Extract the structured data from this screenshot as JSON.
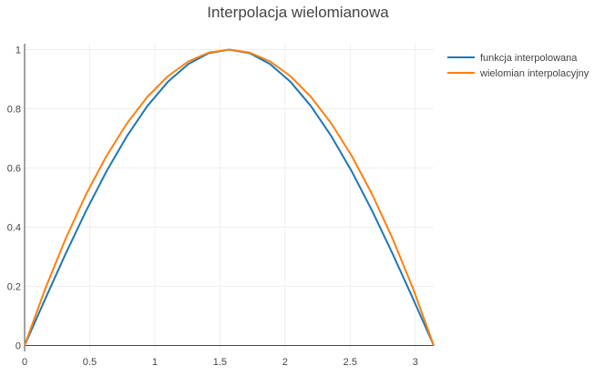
{
  "chart_data": {
    "type": "line",
    "title": "Interpolacja wielomianowa",
    "xlabel": "",
    "ylabel": "",
    "xlim": [
      0,
      3.14159
    ],
    "ylim": [
      -0.02,
      1.02
    ],
    "x_ticks": [
      0,
      0.5,
      1,
      1.5,
      2,
      2.5,
      3
    ],
    "x_tick_labels": [
      "0",
      "0.5",
      "1",
      "1.5",
      "2",
      "2.5",
      "3"
    ],
    "y_ticks": [
      0,
      0.2,
      0.4,
      0.6,
      0.8,
      1
    ],
    "y_tick_labels": [
      "0",
      "0.2",
      "0.4",
      "0.6",
      "0.8",
      "1"
    ],
    "grid": true,
    "legend_position": "top-right",
    "series": [
      {
        "name": "funkcja interpolowana",
        "color": "#1f77b4",
        "x": [
          0,
          0.157,
          0.314,
          0.471,
          0.628,
          0.785,
          0.942,
          1.1,
          1.257,
          1.414,
          1.571,
          1.728,
          1.885,
          2.042,
          2.199,
          2.356,
          2.513,
          2.67,
          2.827,
          2.985,
          3.142
        ],
        "y": [
          0,
          0.156,
          0.309,
          0.454,
          0.588,
          0.707,
          0.809,
          0.891,
          0.951,
          0.988,
          1,
          0.988,
          0.951,
          0.891,
          0.809,
          0.707,
          0.588,
          0.454,
          0.309,
          0.156,
          0
        ]
      },
      {
        "name": "wielomian interpolacyjny",
        "color": "#ff7f0e",
        "x": [
          0,
          0.157,
          0.314,
          0.471,
          0.628,
          0.785,
          0.942,
          1.1,
          1.257,
          1.414,
          1.571,
          1.728,
          1.885,
          2.042,
          2.199,
          2.356,
          2.513,
          2.67,
          2.827,
          2.985,
          3.142
        ],
        "y": [
          0,
          0.19,
          0.36,
          0.51,
          0.64,
          0.75,
          0.84,
          0.91,
          0.96,
          0.99,
          1,
          0.99,
          0.96,
          0.91,
          0.84,
          0.75,
          0.64,
          0.51,
          0.36,
          0.19,
          0
        ]
      }
    ]
  }
}
